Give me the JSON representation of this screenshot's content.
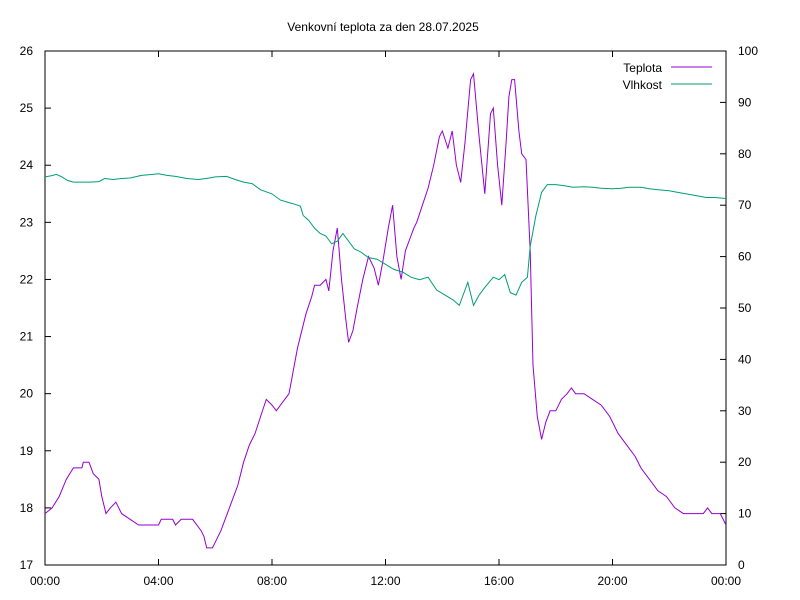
{
  "chart_data": {
    "type": "line",
    "title": "Venkovní teplota za den 28.07.2025",
    "legend_position": "top-right",
    "grid": false,
    "x_ticks": [
      "00:00",
      "04:00",
      "08:00",
      "12:00",
      "16:00",
      "20:00",
      "00:00"
    ],
    "x_range_hours": [
      0,
      24
    ],
    "y_left": {
      "ticks": [
        "17",
        "18",
        "19",
        "20",
        "21",
        "22",
        "23",
        "24",
        "25",
        "26"
      ],
      "range": [
        17,
        26
      ]
    },
    "y_right": {
      "ticks": [
        "0",
        "10",
        "20",
        "30",
        "40",
        "50",
        "60",
        "70",
        "80",
        "90",
        "100"
      ],
      "range": [
        0,
        100
      ]
    },
    "series": [
      {
        "name": "Teplota",
        "axis": "left",
        "color": "#9400d3",
        "points": [
          [
            0.0,
            17.9
          ],
          [
            0.25,
            18.0
          ],
          [
            0.5,
            18.2
          ],
          [
            0.75,
            18.5
          ],
          [
            1.0,
            18.7
          ],
          [
            1.3,
            18.7
          ],
          [
            1.35,
            18.8
          ],
          [
            1.55,
            18.8
          ],
          [
            1.7,
            18.6
          ],
          [
            1.9,
            18.5
          ],
          [
            2.0,
            18.2
          ],
          [
            2.15,
            17.9
          ],
          [
            2.3,
            18.0
          ],
          [
            2.5,
            18.1
          ],
          [
            2.7,
            17.9
          ],
          [
            3.0,
            17.8
          ],
          [
            3.3,
            17.7
          ],
          [
            3.6,
            17.7
          ],
          [
            4.0,
            17.7
          ],
          [
            4.1,
            17.8
          ],
          [
            4.5,
            17.8
          ],
          [
            4.6,
            17.7
          ],
          [
            4.8,
            17.8
          ],
          [
            5.2,
            17.8
          ],
          [
            5.5,
            17.6
          ],
          [
            5.6,
            17.5
          ],
          [
            5.7,
            17.3
          ],
          [
            5.9,
            17.3
          ],
          [
            6.0,
            17.4
          ],
          [
            6.2,
            17.6
          ],
          [
            6.5,
            18.0
          ],
          [
            6.8,
            18.4
          ],
          [
            7.0,
            18.8
          ],
          [
            7.2,
            19.1
          ],
          [
            7.4,
            19.3
          ],
          [
            7.6,
            19.6
          ],
          [
            7.8,
            19.9
          ],
          [
            8.0,
            19.8
          ],
          [
            8.15,
            19.7
          ],
          [
            8.3,
            19.8
          ],
          [
            8.6,
            20.0
          ],
          [
            8.9,
            20.8
          ],
          [
            9.2,
            21.4
          ],
          [
            9.4,
            21.7
          ],
          [
            9.5,
            21.9
          ],
          [
            9.7,
            21.9
          ],
          [
            9.9,
            22.0
          ],
          [
            10.0,
            21.8
          ],
          [
            10.15,
            22.5
          ],
          [
            10.3,
            22.9
          ],
          [
            10.45,
            22.0
          ],
          [
            10.6,
            21.3
          ],
          [
            10.7,
            20.9
          ],
          [
            10.85,
            21.1
          ],
          [
            11.0,
            21.5
          ],
          [
            11.2,
            22.0
          ],
          [
            11.4,
            22.4
          ],
          [
            11.6,
            22.2
          ],
          [
            11.75,
            21.9
          ],
          [
            11.9,
            22.3
          ],
          [
            12.1,
            22.9
          ],
          [
            12.25,
            23.3
          ],
          [
            12.4,
            22.4
          ],
          [
            12.55,
            22.0
          ],
          [
            12.7,
            22.5
          ],
          [
            12.85,
            22.7
          ],
          [
            13.0,
            22.9
          ],
          [
            13.1,
            23.0
          ],
          [
            13.3,
            23.3
          ],
          [
            13.5,
            23.6
          ],
          [
            13.7,
            24.0
          ],
          [
            13.9,
            24.5
          ],
          [
            14.0,
            24.6
          ],
          [
            14.2,
            24.3
          ],
          [
            14.35,
            24.6
          ],
          [
            14.5,
            24.0
          ],
          [
            14.65,
            23.7
          ],
          [
            14.8,
            24.4
          ],
          [
            15.0,
            25.5
          ],
          [
            15.1,
            25.6
          ],
          [
            15.3,
            24.5
          ],
          [
            15.5,
            23.5
          ],
          [
            15.7,
            24.9
          ],
          [
            15.8,
            25.0
          ],
          [
            15.95,
            24.0
          ],
          [
            16.1,
            23.3
          ],
          [
            16.25,
            24.4
          ],
          [
            16.35,
            25.2
          ],
          [
            16.45,
            25.5
          ],
          [
            16.55,
            25.5
          ],
          [
            16.7,
            24.6
          ],
          [
            16.8,
            24.2
          ],
          [
            16.95,
            24.1
          ],
          [
            17.1,
            22.5
          ],
          [
            17.2,
            20.5
          ],
          [
            17.35,
            19.6
          ],
          [
            17.5,
            19.2
          ],
          [
            17.65,
            19.5
          ],
          [
            17.8,
            19.7
          ],
          [
            18.0,
            19.7
          ],
          [
            18.2,
            19.9
          ],
          [
            18.4,
            20.0
          ],
          [
            18.55,
            20.1
          ],
          [
            18.7,
            20.0
          ],
          [
            19.0,
            20.0
          ],
          [
            19.3,
            19.9
          ],
          [
            19.6,
            19.8
          ],
          [
            19.9,
            19.6
          ],
          [
            20.2,
            19.3
          ],
          [
            20.5,
            19.1
          ],
          [
            20.8,
            18.9
          ],
          [
            21.0,
            18.7
          ],
          [
            21.3,
            18.5
          ],
          [
            21.6,
            18.3
          ],
          [
            21.9,
            18.2
          ],
          [
            22.2,
            18.0
          ],
          [
            22.5,
            17.9
          ],
          [
            22.8,
            17.9
          ],
          [
            23.0,
            17.9
          ],
          [
            23.2,
            17.9
          ],
          [
            23.35,
            18.0
          ],
          [
            23.5,
            17.9
          ],
          [
            23.8,
            17.9
          ],
          [
            24.0,
            17.7
          ]
        ]
      },
      {
        "name": "Vlhkost",
        "axis": "right",
        "color": "#009e73",
        "points": [
          [
            0.0,
            75.5
          ],
          [
            0.2,
            75.7
          ],
          [
            0.4,
            76.0
          ],
          [
            0.6,
            75.5
          ],
          [
            0.8,
            74.8
          ],
          [
            1.0,
            74.5
          ],
          [
            1.3,
            74.5
          ],
          [
            1.6,
            74.5
          ],
          [
            1.9,
            74.6
          ],
          [
            2.1,
            75.2
          ],
          [
            2.4,
            75.0
          ],
          [
            2.7,
            75.2
          ],
          [
            3.0,
            75.3
          ],
          [
            3.4,
            75.8
          ],
          [
            3.8,
            76.0
          ],
          [
            4.0,
            76.1
          ],
          [
            4.3,
            75.8
          ],
          [
            4.6,
            75.6
          ],
          [
            5.0,
            75.2
          ],
          [
            5.4,
            75.0
          ],
          [
            5.8,
            75.3
          ],
          [
            6.0,
            75.5
          ],
          [
            6.4,
            75.6
          ],
          [
            6.7,
            75.0
          ],
          [
            7.0,
            74.5
          ],
          [
            7.3,
            74.2
          ],
          [
            7.6,
            73.0
          ],
          [
            8.0,
            72.2
          ],
          [
            8.3,
            71.0
          ],
          [
            8.6,
            70.5
          ],
          [
            8.8,
            70.2
          ],
          [
            9.0,
            69.8
          ],
          [
            9.1,
            68.0
          ],
          [
            9.3,
            67.0
          ],
          [
            9.5,
            65.5
          ],
          [
            9.7,
            64.5
          ],
          [
            9.9,
            64.0
          ],
          [
            10.1,
            62.5
          ],
          [
            10.3,
            63.0
          ],
          [
            10.5,
            64.5
          ],
          [
            10.7,
            63.0
          ],
          [
            10.9,
            61.5
          ],
          [
            11.1,
            61.0
          ],
          [
            11.4,
            59.8
          ],
          [
            11.7,
            59.5
          ],
          [
            12.0,
            58.5
          ],
          [
            12.3,
            57.5
          ],
          [
            12.6,
            57.0
          ],
          [
            12.9,
            56.0
          ],
          [
            13.2,
            55.5
          ],
          [
            13.5,
            56.0
          ],
          [
            13.8,
            53.5
          ],
          [
            14.1,
            52.5
          ],
          [
            14.4,
            51.5
          ],
          [
            14.6,
            50.5
          ],
          [
            14.8,
            53.5
          ],
          [
            14.9,
            55.0
          ],
          [
            15.1,
            50.5
          ],
          [
            15.3,
            52.5
          ],
          [
            15.5,
            54.0
          ],
          [
            15.8,
            56.0
          ],
          [
            16.0,
            55.5
          ],
          [
            16.2,
            56.5
          ],
          [
            16.4,
            53.0
          ],
          [
            16.6,
            52.5
          ],
          [
            16.8,
            55.0
          ],
          [
            17.0,
            56.0
          ],
          [
            17.1,
            62.0
          ],
          [
            17.3,
            68.0
          ],
          [
            17.5,
            72.5
          ],
          [
            17.7,
            74.0
          ],
          [
            18.0,
            74.0
          ],
          [
            18.3,
            73.8
          ],
          [
            18.6,
            73.5
          ],
          [
            19.0,
            73.6
          ],
          [
            19.3,
            73.5
          ],
          [
            19.6,
            73.3
          ],
          [
            20.0,
            73.2
          ],
          [
            20.3,
            73.3
          ],
          [
            20.6,
            73.5
          ],
          [
            21.0,
            73.5
          ],
          [
            21.3,
            73.2
          ],
          [
            21.6,
            73.0
          ],
          [
            22.0,
            72.8
          ],
          [
            22.3,
            72.5
          ],
          [
            22.6,
            72.2
          ],
          [
            23.0,
            71.8
          ],
          [
            23.3,
            71.5
          ],
          [
            23.6,
            71.5
          ],
          [
            24.0,
            71.3
          ]
        ]
      }
    ]
  }
}
